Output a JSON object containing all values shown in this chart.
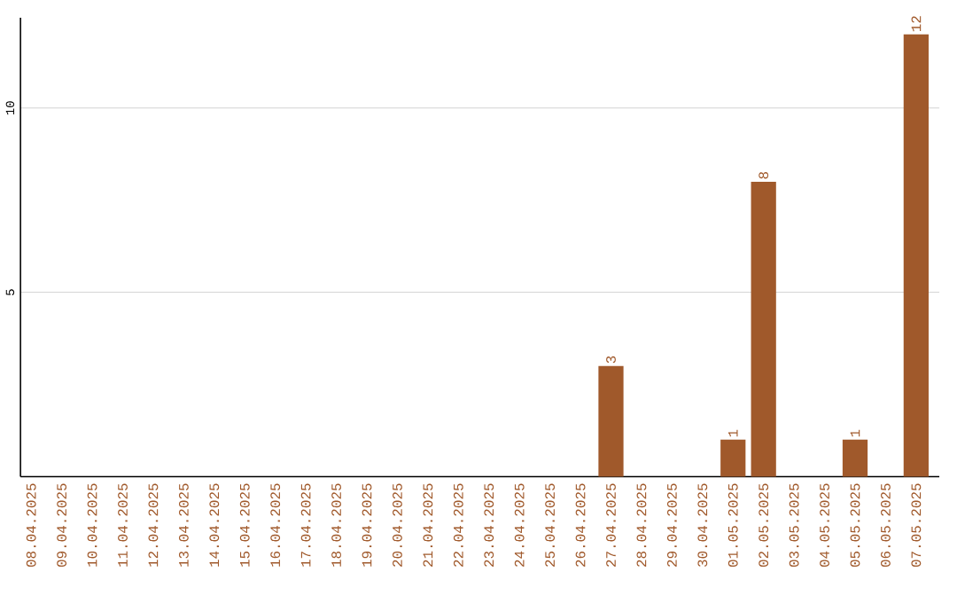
{
  "chart_data": {
    "type": "bar",
    "categories": [
      "08.04.2025",
      "09.04.2025",
      "10.04.2025",
      "11.04.2025",
      "12.04.2025",
      "13.04.2025",
      "14.04.2025",
      "15.04.2025",
      "16.04.2025",
      "17.04.2025",
      "18.04.2025",
      "19.04.2025",
      "20.04.2025",
      "21.04.2025",
      "22.04.2025",
      "23.04.2025",
      "24.04.2025",
      "25.04.2025",
      "26.04.2025",
      "27.04.2025",
      "28.04.2025",
      "29.04.2025",
      "30.04.2025",
      "01.05.2025",
      "02.05.2025",
      "03.05.2025",
      "04.05.2025",
      "05.05.2025",
      "06.05.2025",
      "07.05.2025"
    ],
    "values": [
      0,
      0,
      0,
      0,
      0,
      0,
      0,
      0,
      0,
      0,
      0,
      0,
      0,
      0,
      0,
      0,
      0,
      0,
      0,
      3,
      0,
      0,
      0,
      1,
      8,
      0,
      0,
      1,
      0,
      12
    ],
    "value_labels": [
      null,
      null,
      null,
      null,
      null,
      null,
      null,
      null,
      null,
      null,
      null,
      null,
      null,
      null,
      null,
      null,
      null,
      null,
      null,
      "3",
      null,
      null,
      null,
      "1",
      "8",
      null,
      null,
      "1",
      null,
      "12"
    ],
    "color": "#a0592b",
    "ylim": [
      0,
      12.45
    ],
    "yticks": [
      5,
      10
    ],
    "grid": "y"
  }
}
